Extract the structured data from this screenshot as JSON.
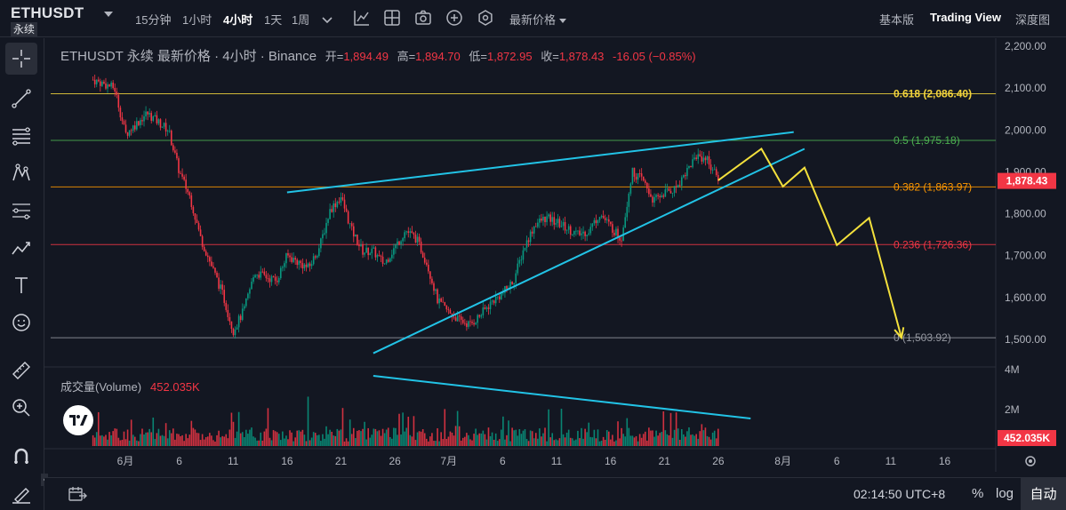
{
  "header": {
    "symbol": "ETHUSDT",
    "contract": "永续",
    "timeframes": [
      "15分钟",
      "1小时",
      "4小时",
      "1天",
      "1周"
    ],
    "active_timeframe": "4小时",
    "price_type": "最新价格",
    "views": [
      "基本版",
      "Trading View",
      "深度图"
    ],
    "active_view": "Trading View"
  },
  "legend": {
    "title": "ETHUSDT 永续 最新价格 · 4小时 · Binance",
    "open_label": "开=",
    "open": "1,894.49",
    "high_label": "高=",
    "high": "1,894.70",
    "low_label": "低=",
    "low": "1,872.95",
    "close_label": "收=",
    "close": "1,878.43",
    "change": "-16.05 (−0.85%)"
  },
  "volume_legend": {
    "label": "成交量(Volume)",
    "value": "452.035K"
  },
  "toolbar_icons": [
    "crosshair-icon",
    "trendline-icon",
    "fib-icon",
    "pattern-icon",
    "prediction-icon",
    "forecast-icon",
    "text-icon",
    "emoji-icon",
    "ruler-icon",
    "zoom-icon",
    "magnet-icon",
    "lock-draw-icon"
  ],
  "bottom": {
    "clock": "02:14:50 UTC+8",
    "percent": "%",
    "log": "log",
    "auto": "自动"
  },
  "colors": {
    "up": "#089981",
    "down": "#f23645",
    "trend": "#22c3e6",
    "projection": "#f3e03c",
    "bg": "#131722"
  },
  "chart_data": {
    "type": "candlestick",
    "interval": "4h",
    "price_axis": {
      "ticks": [
        "2,200.00",
        "2,100.00",
        "2,000.00",
        "1,900.00",
        "1,800.00",
        "1,700.00",
        "1,600.00",
        "1,500.00"
      ],
      "range": [
        1470,
        2230
      ]
    },
    "volume_axis": {
      "ticks": [
        "4M",
        "2M"
      ]
    },
    "time_axis": {
      "ticks": [
        "6月",
        "6",
        "11",
        "16",
        "21",
        "26",
        "7月",
        "6",
        "11",
        "16",
        "21",
        "26",
        "8月",
        "6",
        "11",
        "16"
      ]
    },
    "last_price": "1,878.43",
    "last_volume": "452.035K",
    "fib_levels": [
      {
        "label": "0.618 (2,086.40)",
        "value": 2086.4,
        "color": "#f2d43c"
      },
      {
        "label": "0.5 (1,975.18)",
        "value": 1975.18,
        "color": "#4caf50"
      },
      {
        "label": "0.382 (1,863.97)",
        "value": 1863.97,
        "color": "#ff9800"
      },
      {
        "label": "0.236 (1,726.36)",
        "value": 1726.36,
        "color": "#f23645"
      },
      {
        "label": "0 (1,503.92)",
        "value": 1503.92,
        "color": "#9598a1"
      }
    ],
    "price_path": [
      {
        "date": "2023-05-29",
        "price": 2120
      },
      {
        "date": "2023-05-31",
        "price": 2100
      },
      {
        "date": "2023-06-01",
        "price": 1990
      },
      {
        "date": "2023-06-03",
        "price": 2040
      },
      {
        "date": "2023-06-05",
        "price": 2000
      },
      {
        "date": "2023-06-06",
        "price": 1900
      },
      {
        "date": "2023-06-07",
        "price": 1840
      },
      {
        "date": "2023-06-08",
        "price": 1740
      },
      {
        "date": "2023-06-10",
        "price": 1610
      },
      {
        "date": "2023-06-11",
        "price": 1520
      },
      {
        "date": "2023-06-12",
        "price": 1570
      },
      {
        "date": "2023-06-13",
        "price": 1660
      },
      {
        "date": "2023-06-15",
        "price": 1640
      },
      {
        "date": "2023-06-16",
        "price": 1700
      },
      {
        "date": "2023-06-18",
        "price": 1670
      },
      {
        "date": "2023-06-19",
        "price": 1720
      },
      {
        "date": "2023-06-20",
        "price": 1810
      },
      {
        "date": "2023-06-21",
        "price": 1840
      },
      {
        "date": "2023-06-22",
        "price": 1760
      },
      {
        "date": "2023-06-23",
        "price": 1710
      },
      {
        "date": "2023-06-24",
        "price": 1710
      },
      {
        "date": "2023-06-25",
        "price": 1680
      },
      {
        "date": "2023-06-26",
        "price": 1720
      },
      {
        "date": "2023-06-27",
        "price": 1760
      },
      {
        "date": "2023-06-28",
        "price": 1740
      },
      {
        "date": "2023-06-29",
        "price": 1680
      },
      {
        "date": "2023-06-30",
        "price": 1590
      },
      {
        "date": "2023-07-01",
        "price": 1565
      },
      {
        "date": "2023-07-02",
        "price": 1545
      },
      {
        "date": "2023-07-03",
        "price": 1535
      },
      {
        "date": "2023-07-04",
        "price": 1560
      },
      {
        "date": "2023-07-05",
        "price": 1590
      },
      {
        "date": "2023-07-06",
        "price": 1610
      },
      {
        "date": "2023-07-07",
        "price": 1640
      },
      {
        "date": "2023-07-08",
        "price": 1720
      },
      {
        "date": "2023-07-09",
        "price": 1775
      },
      {
        "date": "2023-07-10",
        "price": 1790
      },
      {
        "date": "2023-07-11",
        "price": 1780
      },
      {
        "date": "2023-07-12",
        "price": 1765
      },
      {
        "date": "2023-07-13",
        "price": 1750
      },
      {
        "date": "2023-07-14",
        "price": 1760
      },
      {
        "date": "2023-07-15",
        "price": 1800
      },
      {
        "date": "2023-07-16",
        "price": 1770
      },
      {
        "date": "2023-07-17",
        "price": 1740
      },
      {
        "date": "2023-07-18",
        "price": 1900
      },
      {
        "date": "2023-07-19",
        "price": 1880
      },
      {
        "date": "2023-07-20",
        "price": 1830
      },
      {
        "date": "2023-07-21",
        "price": 1850
      },
      {
        "date": "2023-07-22",
        "price": 1860
      },
      {
        "date": "2023-07-23",
        "price": 1900
      },
      {
        "date": "2023-07-24",
        "price": 1940
      },
      {
        "date": "2023-07-25",
        "price": 1930
      },
      {
        "date": "2023-07-26",
        "price": 1878.43
      }
    ],
    "trendlines": [
      {
        "name": "upper-resistance",
        "from": {
          "date": "2023-06-16",
          "price": 1851
        },
        "to": {
          "date": "2023-08-02",
          "price": 1995
        }
      },
      {
        "name": "lower-support",
        "from": {
          "date": "2023-06-24",
          "price": 1467
        },
        "to": {
          "date": "2023-08-03",
          "price": 1955
        }
      }
    ],
    "volume_trendline": {
      "from": {
        "date": "2023-06-24"
      },
      "to": {
        "date": "2023-07-29"
      }
    },
    "projection": [
      {
        "date": "2023-07-26",
        "price": 1880
      },
      {
        "date": "2023-07-30",
        "price": 1955
      },
      {
        "date": "2023-08-01",
        "price": 1865
      },
      {
        "date": "2023-08-03",
        "price": 1910
      },
      {
        "date": "2023-08-06",
        "price": 1725
      },
      {
        "date": "2023-08-09",
        "price": 1790
      },
      {
        "date": "2023-08-12",
        "price": 1503.92
      }
    ]
  }
}
